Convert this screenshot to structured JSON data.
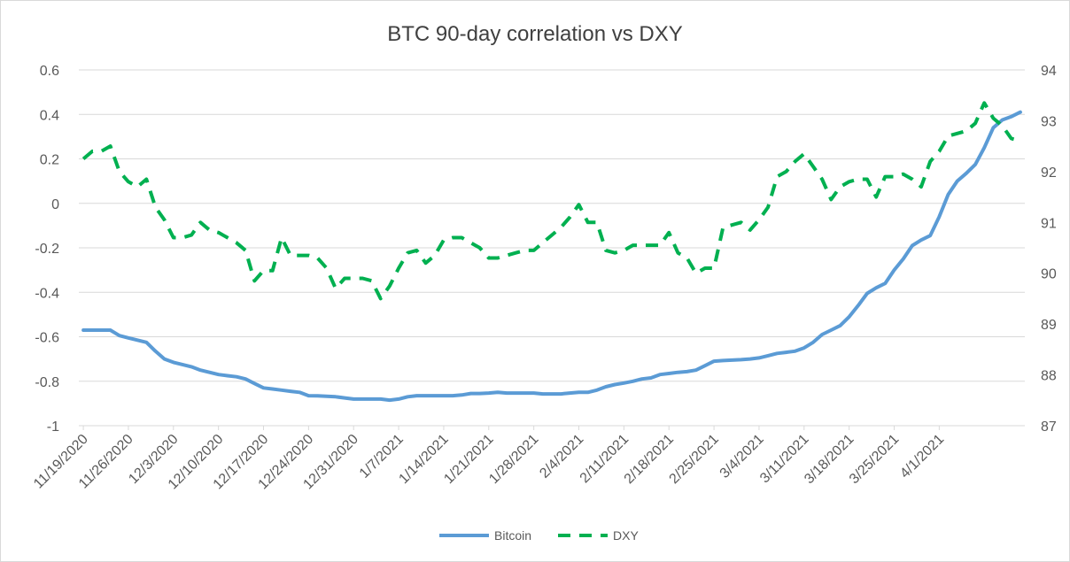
{
  "chart_data": {
    "type": "line",
    "title": "BTC 90-day correlation vs DXY",
    "x_tick_labels": [
      "11/19/2020",
      "11/26/2020",
      "12/3/2020",
      "12/10/2020",
      "12/17/2020",
      "12/24/2020",
      "12/31/2020",
      "1/7/2021",
      "1/14/2021",
      "1/21/2021",
      "1/28/2021",
      "2/4/2021",
      "2/11/2021",
      "2/18/2021",
      "2/25/2021",
      "3/4/2021",
      "3/11/2021",
      "3/18/2021",
      "3/25/2021",
      "4/1/2021"
    ],
    "y_left": {
      "min": -1,
      "max": 0.6,
      "step": 0.2,
      "tick_labels": [
        "0.6",
        "0.4",
        "0.2",
        "0",
        "-0.2",
        "-0.4",
        "-0.6",
        "-0.8",
        "-1"
      ]
    },
    "y_right": {
      "min": 87,
      "max": 94,
      "step": 1,
      "tick_labels": [
        "94",
        "93",
        "92",
        "91",
        "90",
        "89",
        "88",
        "87"
      ]
    },
    "grid": true,
    "legend_position": "bottom",
    "series": [
      {
        "name": "Bitcoin",
        "axis": "left",
        "color": "#5b9bd5",
        "style": "solid",
        "values": [
          -0.57,
          -0.57,
          -0.57,
          -0.57,
          -0.595,
          -0.605,
          -0.615,
          -0.625,
          -0.665,
          -0.7,
          -0.715,
          -0.725,
          -0.735,
          -0.75,
          -0.76,
          -0.77,
          -0.775,
          -0.78,
          -0.79,
          -0.81,
          -0.83,
          -0.835,
          -0.84,
          -0.845,
          -0.85,
          -0.865,
          -0.866,
          -0.868,
          -0.87,
          -0.875,
          -0.88,
          -0.88,
          -0.88,
          -0.88,
          -0.885,
          -0.88,
          -0.87,
          -0.865,
          -0.865,
          -0.865,
          -0.865,
          -0.865,
          -0.862,
          -0.855,
          -0.855,
          -0.853,
          -0.85,
          -0.853,
          -0.853,
          -0.853,
          -0.853,
          -0.857,
          -0.857,
          -0.857,
          -0.853,
          -0.85,
          -0.85,
          -0.84,
          -0.825,
          -0.815,
          -0.808,
          -0.8,
          -0.79,
          -0.785,
          -0.77,
          -0.765,
          -0.76,
          -0.757,
          -0.75,
          -0.73,
          -0.71,
          -0.707,
          -0.705,
          -0.703,
          -0.7,
          -0.695,
          -0.685,
          -0.675,
          -0.67,
          -0.665,
          -0.65,
          -0.625,
          -0.59,
          -0.57,
          -0.55,
          -0.51,
          -0.46,
          -0.405,
          -0.38,
          -0.36,
          -0.3,
          -0.25,
          -0.19,
          -0.165,
          -0.145,
          -0.06,
          0.04,
          0.1,
          0.135,
          0.175,
          0.25,
          0.34,
          0.375,
          0.39,
          0.41
        ]
      },
      {
        "name": "DXY",
        "axis": "right",
        "color": "#00b050",
        "style": "dashed",
        "values": [
          92.25,
          92.4,
          92.4,
          92.5,
          92.0,
          91.8,
          91.7,
          91.85,
          91.3,
          91.05,
          90.7,
          90.7,
          90.75,
          91.0,
          90.85,
          90.8,
          90.7,
          90.6,
          90.45,
          89.85,
          90.05,
          90.05,
          90.7,
          90.35,
          90.35,
          90.35,
          90.3,
          90.1,
          89.7,
          89.9,
          89.9,
          89.9,
          89.85,
          89.5,
          89.75,
          90.1,
          90.4,
          90.45,
          90.2,
          90.35,
          90.65,
          90.7,
          90.7,
          90.6,
          90.5,
          90.3,
          90.3,
          90.35,
          90.4,
          90.45,
          90.45,
          90.6,
          90.75,
          90.9,
          91.1,
          91.35,
          91.0,
          91.0,
          90.45,
          90.4,
          90.45,
          90.55,
          90.55,
          90.55,
          90.55,
          90.8,
          90.4,
          90.3,
          90.0,
          90.1,
          90.1,
          90.9,
          90.95,
          91.0,
          90.85,
          91.05,
          91.3,
          91.9,
          92.0,
          92.2,
          92.35,
          92.1,
          91.85,
          91.45,
          91.7,
          91.8,
          91.85,
          91.85,
          91.5,
          91.9,
          91.9,
          91.95,
          91.85,
          91.7,
          92.2,
          92.4,
          92.7,
          92.75,
          92.8,
          92.95,
          93.35,
          93.05,
          92.9,
          92.65,
          92.6
        ]
      }
    ]
  }
}
